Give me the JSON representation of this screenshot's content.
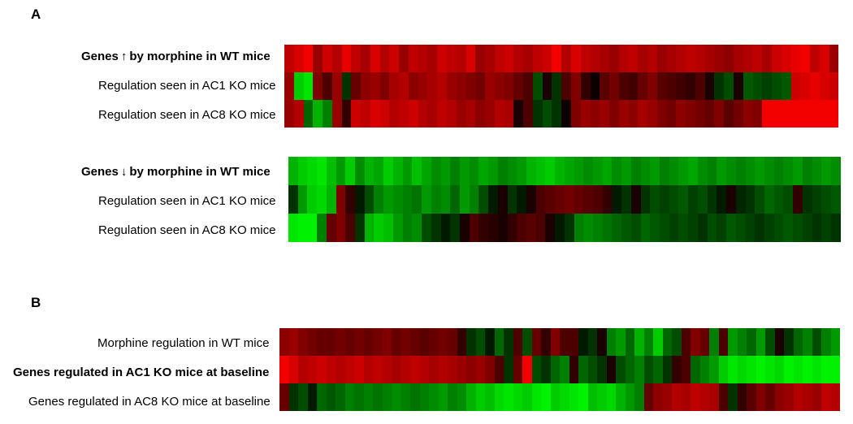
{
  "panels": {
    "a": {
      "letter": "A",
      "up_block": {
        "title_prefix": "Genes",
        "title_arrow": "↑",
        "title_suffix": "by morphine in WT mice",
        "rows": [
          {
            "label": "Regulation seen in AC1 KO mice"
          },
          {
            "label": "Regulation seen in AC8 KO mice"
          }
        ]
      },
      "down_block": {
        "title_prefix": "Genes",
        "title_arrow": "↓",
        "title_suffix": "by morphine in WT mice",
        "rows": [
          {
            "label": "Regulation seen in AC1 KO mice"
          },
          {
            "label": "Regulation seen in AC8 KO mice"
          }
        ]
      }
    },
    "b": {
      "letter": "B",
      "rows": [
        {
          "label": "Morphine regulation in WT mice",
          "bold": false
        },
        {
          "label": "Genes regulated in AC1 KO mice at baseline",
          "bold": true
        },
        {
          "label": "Genes regulated in AC8 KO mice at baseline",
          "bold": false
        }
      ]
    }
  },
  "heatmap": {
    "colors": {
      "high": "#ff0000",
      "mid": "#000000",
      "low": "#00ff00"
    },
    "a_up": [
      [
        0.75,
        0.85,
        0.95,
        0.6,
        0.8,
        0.7,
        0.9,
        0.75,
        0.65,
        0.85,
        0.7,
        0.8,
        0.6,
        0.75,
        0.7,
        0.65,
        0.8,
        0.75,
        0.7,
        0.85,
        0.6,
        0.65,
        0.75,
        0.8,
        0.7,
        0.65,
        0.75,
        0.8,
        0.95,
        0.7,
        0.85,
        0.75,
        0.7,
        0.65,
        0.6,
        0.7,
        0.75,
        0.65,
        0.7,
        0.6,
        0.65,
        0.7,
        0.75,
        0.7,
        0.65,
        0.6,
        0.55,
        0.65,
        0.7,
        0.75,
        0.65,
        0.8,
        0.85,
        0.9,
        0.95,
        0.75,
        0.85,
        0.6
      ],
      [
        0.6,
        -0.8,
        -0.9,
        0.5,
        0.3,
        0.6,
        -0.2,
        0.4,
        0.55,
        0.6,
        0.5,
        0.65,
        0.7,
        0.55,
        0.6,
        0.65,
        0.7,
        0.6,
        0.55,
        0.5,
        0.45,
        0.6,
        0.55,
        0.5,
        0.4,
        0.3,
        -0.3,
        0.1,
        -0.2,
        0.3,
        0.5,
        0.2,
        0.05,
        0.35,
        0.45,
        0.3,
        0.25,
        0.4,
        0.5,
        0.35,
        0.3,
        0.25,
        0.2,
        0.3,
        0.1,
        -0.2,
        -0.3,
        0.1,
        -0.35,
        -0.3,
        -0.25,
        -0.3,
        -0.35,
        0.8,
        0.85,
        0.9,
        0.85,
        0.8
      ],
      [
        0.6,
        0.7,
        -0.4,
        -0.7,
        -0.5,
        0.6,
        0.2,
        0.8,
        0.75,
        0.85,
        0.8,
        0.7,
        0.75,
        0.8,
        0.7,
        0.65,
        0.75,
        0.7,
        0.6,
        0.65,
        0.55,
        0.6,
        0.7,
        0.65,
        0.1,
        0.3,
        -0.2,
        -0.3,
        -0.2,
        0.05,
        0.5,
        0.6,
        0.55,
        0.6,
        0.5,
        0.6,
        0.55,
        0.65,
        0.6,
        0.5,
        0.45,
        0.55,
        0.5,
        0.45,
        0.4,
        0.5,
        0.35,
        0.45,
        0.55,
        0.5,
        0.95,
        0.95,
        0.95,
        0.95,
        0.95,
        0.95,
        0.95,
        0.95
      ]
    ],
    "a_down": [
      [
        -0.7,
        -0.8,
        -0.85,
        -0.9,
        -0.75,
        -0.6,
        -0.8,
        -0.55,
        -0.7,
        -0.65,
        -0.8,
        -0.7,
        -0.6,
        -0.75,
        -0.65,
        -0.55,
        -0.6,
        -0.5,
        -0.6,
        -0.55,
        -0.65,
        -0.6,
        -0.5,
        -0.55,
        -0.6,
        -0.7,
        -0.75,
        -0.8,
        -0.7,
        -0.65,
        -0.6,
        -0.55,
        -0.6,
        -0.65,
        -0.55,
        -0.6,
        -0.5,
        -0.55,
        -0.6,
        -0.5,
        -0.55,
        -0.6,
        -0.65,
        -0.55,
        -0.5,
        -0.6,
        -0.55,
        -0.5,
        -0.55,
        -0.6,
        -0.55,
        -0.5,
        -0.55,
        -0.6,
        -0.5,
        -0.55,
        -0.6,
        -0.55
      ],
      [
        -0.2,
        -0.6,
        -0.8,
        -0.85,
        -0.7,
        0.5,
        0.2,
        -0.1,
        -0.3,
        -0.5,
        -0.6,
        -0.55,
        -0.5,
        -0.45,
        -0.6,
        -0.5,
        -0.55,
        -0.4,
        -0.6,
        -0.5,
        -0.3,
        -0.1,
        0.1,
        -0.2,
        -0.1,
        0.1,
        0.3,
        0.35,
        0.4,
        0.45,
        0.4,
        0.35,
        0.3,
        0.2,
        -0.1,
        -0.2,
        0.1,
        -0.2,
        -0.3,
        -0.25,
        -0.3,
        -0.35,
        -0.25,
        -0.3,
        -0.2,
        -0.1,
        0.1,
        -0.15,
        -0.2,
        -0.3,
        -0.4,
        -0.35,
        -0.3,
        0.2,
        -0.2,
        -0.25,
        -0.3,
        -0.35
      ],
      [
        -0.9,
        -0.95,
        -0.95,
        -0.5,
        0.4,
        0.5,
        0.3,
        -0.2,
        -0.7,
        -0.8,
        -0.75,
        -0.6,
        -0.5,
        -0.55,
        -0.3,
        -0.2,
        -0.1,
        -0.2,
        0.1,
        0.3,
        0.2,
        0.15,
        0.1,
        0.2,
        0.3,
        0.35,
        0.3,
        0.1,
        -0.1,
        -0.2,
        -0.5,
        -0.55,
        -0.5,
        -0.45,
        -0.4,
        -0.35,
        -0.3,
        -0.4,
        -0.35,
        -0.3,
        -0.25,
        -0.3,
        -0.25,
        -0.2,
        -0.3,
        -0.25,
        -0.35,
        -0.3,
        -0.25,
        -0.2,
        -0.25,
        -0.3,
        -0.35,
        -0.3,
        -0.25,
        -0.2,
        -0.25,
        -0.2
      ]
    ],
    "b": [
      [
        0.55,
        0.6,
        0.5,
        0.45,
        0.4,
        0.4,
        0.45,
        0.4,
        0.45,
        0.4,
        0.45,
        0.5,
        0.4,
        0.45,
        0.4,
        0.35,
        0.4,
        0.45,
        0.4,
        0.2,
        -0.2,
        -0.3,
        -0.1,
        -0.4,
        -0.2,
        0.3,
        -0.3,
        0.4,
        0.2,
        0.5,
        0.3,
        0.3,
        -0.1,
        -0.2,
        0.1,
        -0.5,
        -0.6,
        -0.4,
        -0.7,
        -0.5,
        -0.8,
        -0.4,
        -0.3,
        0.3,
        0.5,
        0.4,
        -0.5,
        0.3,
        -0.6,
        -0.5,
        -0.4,
        -0.6,
        -0.3,
        0.1,
        -0.2,
        -0.4,
        -0.5,
        -0.3,
        -0.5,
        -0.6
      ],
      [
        0.95,
        0.85,
        0.7,
        0.75,
        0.8,
        0.75,
        0.7,
        0.75,
        0.8,
        0.7,
        0.75,
        0.7,
        0.65,
        0.7,
        0.75,
        0.7,
        0.65,
        0.7,
        0.65,
        0.6,
        0.55,
        0.6,
        0.5,
        0.3,
        -0.2,
        0.4,
        0.95,
        -0.3,
        -0.2,
        -0.4,
        -0.5,
        0.2,
        -0.4,
        -0.3,
        -0.2,
        0.1,
        -0.3,
        -0.4,
        -0.5,
        -0.3,
        -0.4,
        -0.2,
        0.2,
        0.3,
        -0.4,
        -0.5,
        -0.6,
        -0.8,
        -0.9,
        -0.85,
        -0.9,
        -0.95,
        -0.9,
        -0.85,
        -0.95,
        -0.9,
        -0.95,
        -0.9,
        -0.95,
        -0.95
      ],
      [
        0.4,
        -0.2,
        -0.3,
        -0.1,
        -0.4,
        -0.35,
        -0.4,
        -0.5,
        -0.45,
        -0.5,
        -0.45,
        -0.5,
        -0.55,
        -0.5,
        -0.45,
        -0.5,
        -0.55,
        -0.6,
        -0.5,
        -0.55,
        -0.7,
        -0.8,
        -0.75,
        -0.85,
        -0.9,
        -0.85,
        -0.8,
        -0.9,
        -0.95,
        -0.8,
        -0.85,
        -0.9,
        -0.95,
        -0.75,
        -0.8,
        -0.85,
        -0.7,
        -0.6,
        -0.5,
        0.4,
        0.55,
        0.6,
        0.7,
        0.65,
        0.75,
        0.7,
        0.65,
        0.3,
        -0.2,
        0.2,
        0.35,
        0.5,
        0.4,
        0.55,
        0.6,
        0.7,
        0.65,
        0.6,
        0.75,
        0.7
      ]
    ]
  }
}
